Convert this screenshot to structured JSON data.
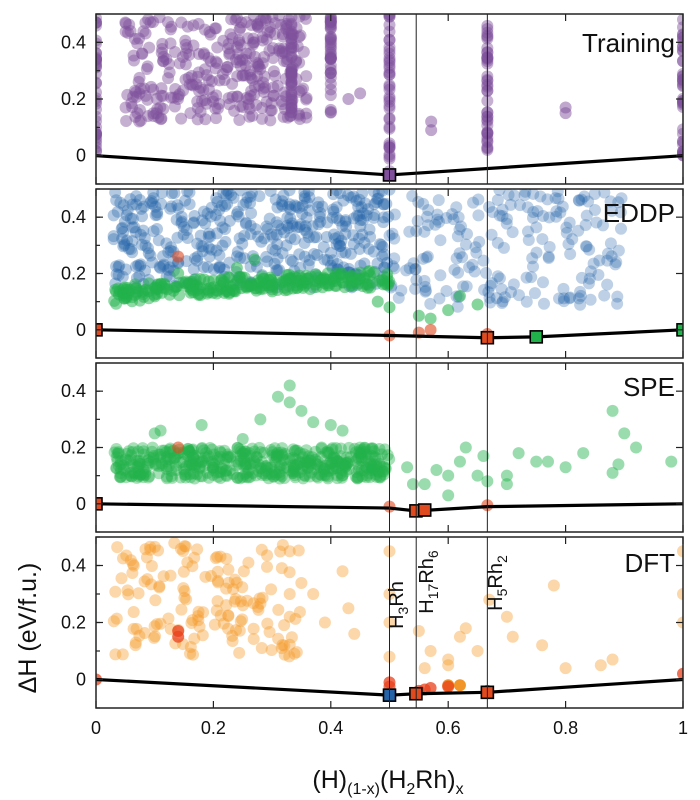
{
  "chart_data": {
    "type": "scatter",
    "xlabel": "(H)(1-x)(H2Rh)x",
    "xlabel_parts": {
      "a": "(H)",
      "a_sub": "(1-x)",
      "b": "(H",
      "b_sub1": "2",
      "c": "Rh)",
      "c_sub": "x"
    },
    "ylabel": "ΔH (eV/f.u.)",
    "xlim": [
      0,
      1
    ],
    "ylim": [
      -0.1,
      0.5
    ],
    "x_ticks": [
      0,
      0.2,
      0.4,
      0.6,
      0.8,
      1
    ],
    "x_tick_labels": [
      "0",
      "0.2",
      "0.4",
      "0.6",
      "0.8",
      "1"
    ],
    "y_ticks": [
      0,
      0.2,
      0.4
    ],
    "y_tick_labels": [
      "0",
      "0.2",
      "0.4"
    ],
    "vertical_lines_x": [
      0.5,
      0.5455,
      0.6667
    ],
    "compound_labels": [
      {
        "x": 0.5,
        "base": "H",
        "sub1": "3",
        "mid": "Rh",
        "sub2": ""
      },
      {
        "x": 0.5455,
        "base": "H",
        "sub1": "17",
        "mid": "Rh",
        "sub2": "6"
      },
      {
        "x": 0.6667,
        "base": "H",
        "sub1": "5",
        "mid": "Rh",
        "sub2": "2"
      }
    ],
    "panels": [
      {
        "name": "Training",
        "color": "#7f4f9c",
        "hull": [
          [
            0,
            0
          ],
          [
            0.5,
            -0.068
          ],
          [
            1,
            0
          ]
        ],
        "hull_markers": [
          {
            "x": 0.5,
            "y": -0.068,
            "color": "#7f4f9c"
          }
        ],
        "cloud": {
          "xmin": 0.05,
          "xmax": 0.36,
          "ymin": 0.12,
          "ymax": 0.5,
          "count": 320
        },
        "columns": [
          {
            "x": 0.5,
            "ymin": -0.06,
            "ymax": 0.5
          },
          {
            "x": 0.6667,
            "ymin": 0.02,
            "ymax": 0.5
          },
          {
            "x": 0.4,
            "ymin": 0.15,
            "ymax": 0.5
          },
          {
            "x": 0.333,
            "ymin": 0.15,
            "ymax": 0.5
          },
          {
            "x": 0.0,
            "ymin": 0.0,
            "ymax": 0.5
          },
          {
            "x": 1.0,
            "ymin": 0.0,
            "ymax": 0.5
          }
        ],
        "extra_points": [
          [
            0.571,
            0.12
          ],
          [
            0.571,
            0.09
          ],
          [
            0.8,
            0.17
          ],
          [
            0.8,
            0.15
          ],
          [
            0.43,
            0.2
          ],
          [
            0.45,
            0.22
          ],
          [
            0.26,
            0.18
          ],
          [
            0.26,
            0.2
          ]
        ]
      },
      {
        "name": "EDDP",
        "color": "#2563a8",
        "color2": "#22b24c",
        "hull": [
          [
            0,
            0
          ],
          [
            0.5,
            -0.02
          ],
          [
            0.6667,
            -0.028
          ],
          [
            0.75,
            -0.025
          ],
          [
            1,
            0
          ]
        ],
        "hull_markers": [
          {
            "x": 0,
            "y": 0,
            "color": "#e04a1f"
          },
          {
            "x": 0.6667,
            "y": -0.028,
            "color": "#e04a1f"
          },
          {
            "x": 0.75,
            "y": -0.025,
            "color": "#22b24c"
          },
          {
            "x": 1,
            "y": 0,
            "color": "#22b24c"
          }
        ],
        "blue_cloud": {
          "xmin": 0.03,
          "xmax": 0.5,
          "ymin": 0.15,
          "ymax": 0.5,
          "count": 420
        },
        "blue_cloud2": {
          "xmin": 0.5,
          "xmax": 0.9,
          "ymin": 0.08,
          "ymax": 0.5,
          "count": 200
        },
        "green_band": {
          "xmin": 0.03,
          "xmax": 0.5,
          "ylow": 0.1,
          "yhigh": 0.16,
          "count": 260
        },
        "green_points": [
          [
            0.5,
            0.08
          ],
          [
            0.55,
            0.05
          ],
          [
            0.6,
            0.07
          ],
          [
            0.62,
            0.12
          ],
          [
            0.57,
            0.04
          ],
          [
            0.65,
            0.09
          ],
          [
            0.48,
            0.1
          ],
          [
            0.27,
            0.25
          ],
          [
            0.14,
            0.2
          ],
          [
            0.24,
            0.22
          ]
        ],
        "red_points": [
          [
            0.5,
            -0.02
          ],
          [
            0.55,
            -0.01
          ],
          [
            0.57,
            0.0
          ],
          [
            0.14,
            0.26
          ],
          [
            0.6667,
            -0.015
          ]
        ]
      },
      {
        "name": "SPE",
        "color": "#22b24c",
        "hull": [
          [
            0,
            0
          ],
          [
            0.5,
            -0.015
          ],
          [
            0.545,
            -0.025
          ],
          [
            0.6667,
            -0.01
          ],
          [
            1,
            0
          ]
        ],
        "hull_markers": [
          {
            "x": 0,
            "y": 0,
            "color": "#e04a1f"
          },
          {
            "x": 0.545,
            "y": -0.025,
            "color": "#e04a1f"
          },
          {
            "x": 0.56,
            "y": -0.022,
            "color": "#e04a1f"
          }
        ],
        "band": {
          "xmin": 0.03,
          "xmax": 0.5,
          "ylow": 0.09,
          "yhigh": 0.2,
          "count": 480
        },
        "scatter_points": [
          [
            0.1,
            0.25
          ],
          [
            0.11,
            0.26
          ],
          [
            0.18,
            0.28
          ],
          [
            0.25,
            0.23
          ],
          [
            0.28,
            0.3
          ],
          [
            0.33,
            0.42
          ],
          [
            0.35,
            0.33
          ],
          [
            0.33,
            0.36
          ],
          [
            0.31,
            0.38
          ],
          [
            0.37,
            0.29
          ],
          [
            0.4,
            0.28
          ],
          [
            0.42,
            0.26
          ],
          [
            0.45,
            0.18
          ],
          [
            0.47,
            0.12
          ],
          [
            0.53,
            0.13
          ],
          [
            0.56,
            0.07
          ],
          [
            0.58,
            0.12
          ],
          [
            0.6,
            0.1
          ],
          [
            0.62,
            0.15
          ],
          [
            0.63,
            0.2
          ],
          [
            0.65,
            0.1
          ],
          [
            0.66,
            0.17
          ],
          [
            0.7,
            0.1
          ],
          [
            0.72,
            0.18
          ],
          [
            0.75,
            0.15
          ],
          [
            0.77,
            0.15
          ],
          [
            0.8,
            0.13
          ],
          [
            0.83,
            0.18
          ],
          [
            0.88,
            0.11
          ],
          [
            0.89,
            0.14
          ],
          [
            0.9,
            0.25
          ],
          [
            0.92,
            0.2
          ],
          [
            0.98,
            0.15
          ],
          [
            0.7,
            0.07
          ],
          [
            0.6667,
            0.08
          ],
          [
            0.54,
            0.07
          ],
          [
            0.6,
            0.03
          ],
          [
            0.88,
            0.33
          ]
        ],
        "red_points": [
          [
            0.14,
            0.2
          ],
          [
            0.5,
            -0.01
          ],
          [
            0.6667,
            -0.005
          ]
        ]
      },
      {
        "name": "DFT",
        "color": "#f59a2a",
        "hull": [
          [
            0,
            0
          ],
          [
            0.5,
            -0.055
          ],
          [
            0.545,
            -0.05
          ],
          [
            0.6667,
            -0.045
          ],
          [
            1,
            0
          ]
        ],
        "hull_markers": [
          {
            "x": 0.5,
            "y": -0.055,
            "color": "#2563a8"
          },
          {
            "x": 0.545,
            "y": -0.05,
            "color": "#e04a1f"
          },
          {
            "x": 0.6667,
            "y": -0.045,
            "color": "#e04a1f"
          }
        ],
        "cloud": {
          "xmin": 0.03,
          "xmax": 0.35,
          "ymin": 0.08,
          "ymax": 0.48,
          "count": 150
        },
        "scatter_points": [
          [
            0.37,
            0.3
          ],
          [
            0.39,
            0.2
          ],
          [
            0.42,
            0.38
          ],
          [
            0.43,
            0.25
          ],
          [
            0.44,
            0.16
          ],
          [
            0.33,
            0.45
          ],
          [
            0.33,
            0.3
          ],
          [
            0.33,
            0.22
          ],
          [
            0.5,
            0.45
          ],
          [
            0.5,
            0.3
          ],
          [
            0.5,
            0.2
          ],
          [
            0.5,
            0.08
          ],
          [
            0.55,
            0.17
          ],
          [
            0.56,
            0.04
          ],
          [
            0.6,
            0.05
          ],
          [
            0.6,
            0.07
          ],
          [
            0.62,
            0.15
          ],
          [
            0.63,
            0.18
          ],
          [
            0.65,
            0.1
          ],
          [
            0.67,
            0.28
          ],
          [
            0.7,
            0.22
          ],
          [
            0.71,
            0.15
          ],
          [
            0.76,
            0.12
          ],
          [
            0.78,
            0.33
          ],
          [
            0.86,
            0.05
          ],
          [
            0.88,
            0.07
          ],
          [
            0.8,
            0.04
          ],
          [
            1.0,
            0.45
          ],
          [
            1.0,
            0.3
          ],
          [
            1.0,
            0.2
          ],
          [
            0.57,
            0.1
          ]
        ],
        "red_points": [
          [
            0.14,
            0.17
          ],
          [
            0.14,
            0.15
          ],
          [
            0.5,
            -0.01
          ],
          [
            0.5,
            -0.025
          ],
          [
            0.55,
            -0.04
          ],
          [
            0.56,
            -0.035
          ],
          [
            0.57,
            -0.03
          ],
          [
            0.6,
            -0.025
          ],
          [
            0.6667,
            -0.04
          ],
          [
            1.0,
            0.02
          ],
          [
            0.0,
            0.0
          ]
        ],
        "orange_strong_points": [
          [
            0.6,
            -0.02
          ],
          [
            0.62,
            -0.02
          ]
        ]
      }
    ]
  }
}
